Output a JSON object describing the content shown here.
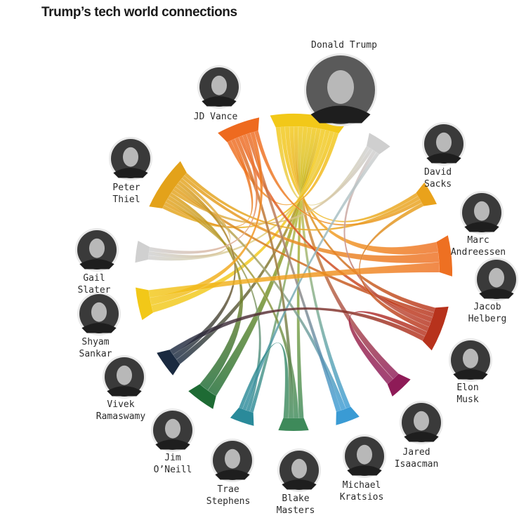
{
  "title": "Trump’s tech world connections",
  "people": [
    {
      "id": "trump",
      "label_lines": [
        "Donald Trump"
      ],
      "color": "#f2c818"
    },
    {
      "id": "sacks",
      "label_lines": [
        "David",
        "Sacks"
      ],
      "color": "#cfcfcf"
    },
    {
      "id": "andreessen",
      "label_lines": [
        "Marc",
        "Andreessen"
      ],
      "color": "#e9a21b"
    },
    {
      "id": "helberg",
      "label_lines": [
        "Jacob",
        "Helberg"
      ],
      "color": "#ee7022"
    },
    {
      "id": "musk",
      "label_lines": [
        "Elon",
        "Musk"
      ],
      "color": "#b7321c"
    },
    {
      "id": "isaacman",
      "label_lines": [
        "Jared",
        "Isaacman"
      ],
      "color": "#8e1b57"
    },
    {
      "id": "kratsios",
      "label_lines": [
        "Michael",
        "Kratsios"
      ],
      "color": "#3a9bd4"
    },
    {
      "id": "masters",
      "label_lines": [
        "Blake",
        "Masters"
      ],
      "color": "#3e8a5a"
    },
    {
      "id": "stephens",
      "label_lines": [
        "Trae",
        "Stephens"
      ],
      "color": "#2a8a9a"
    },
    {
      "id": "oneill",
      "label_lines": [
        "Jim",
        "O’Neill"
      ],
      "color": "#1e6b34"
    },
    {
      "id": "ramaswamy",
      "label_lines": [
        "Vivek",
        "Ramaswamy"
      ],
      "color": "#1a2a40"
    },
    {
      "id": "sankar",
      "label_lines": [
        "Shyam",
        "Sankar"
      ],
      "color": "#f2c818"
    },
    {
      "id": "slater",
      "label_lines": [
        "Gail",
        "Slater"
      ],
      "color": "#d0d0d0"
    },
    {
      "id": "thiel",
      "label_lines": [
        "Peter",
        "Thiel"
      ],
      "color": "#e3a21a"
    },
    {
      "id": "vance",
      "label_lines": [
        "JD Vance"
      ],
      "color": "#ee6a1f"
    }
  ],
  "connections": [
    [
      "trump",
      "sacks"
    ],
    [
      "trump",
      "andreessen"
    ],
    [
      "trump",
      "helberg"
    ],
    [
      "trump",
      "musk"
    ],
    [
      "trump",
      "isaacman"
    ],
    [
      "trump",
      "kratsios"
    ],
    [
      "trump",
      "masters"
    ],
    [
      "trump",
      "stephens"
    ],
    [
      "trump",
      "oneill"
    ],
    [
      "trump",
      "ramaswamy"
    ],
    [
      "trump",
      "sankar"
    ],
    [
      "trump",
      "slater"
    ],
    [
      "trump",
      "thiel"
    ],
    [
      "trump",
      "vance"
    ],
    [
      "thiel",
      "vance"
    ],
    [
      "thiel",
      "masters"
    ],
    [
      "thiel",
      "stephens"
    ],
    [
      "thiel",
      "oneill"
    ],
    [
      "thiel",
      "sacks"
    ],
    [
      "thiel",
      "musk"
    ],
    [
      "thiel",
      "kratsios"
    ],
    [
      "thiel",
      "ramaswamy"
    ],
    [
      "thiel",
      "slater"
    ],
    [
      "thiel",
      "helberg"
    ],
    [
      "thiel",
      "andreessen"
    ],
    [
      "vance",
      "masters"
    ],
    [
      "vance",
      "musk"
    ],
    [
      "vance",
      "slater"
    ],
    [
      "vance",
      "kratsios"
    ],
    [
      "vance",
      "sankar"
    ],
    [
      "vance",
      "andreessen"
    ],
    [
      "sacks",
      "musk"
    ],
    [
      "sacks",
      "stephens"
    ],
    [
      "andreessen",
      "musk"
    ],
    [
      "musk",
      "isaacman"
    ],
    [
      "musk",
      "ramaswamy"
    ],
    [
      "helberg",
      "sankar"
    ],
    [
      "masters",
      "stephens"
    ]
  ]
}
